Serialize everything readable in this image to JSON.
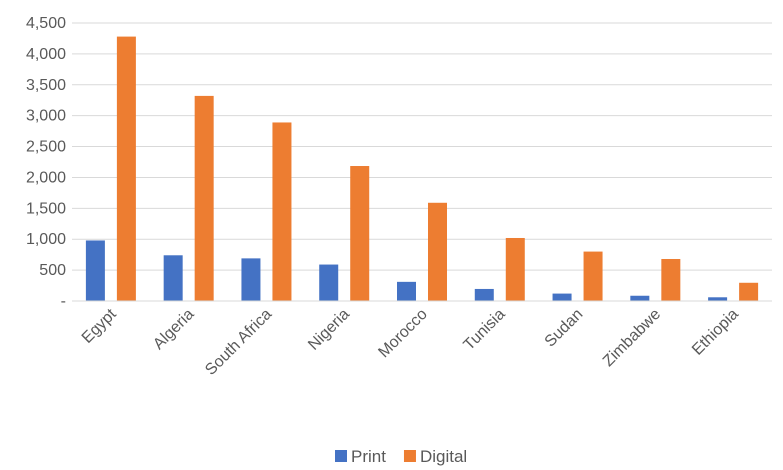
{
  "chart_data": {
    "type": "bar",
    "title": "",
    "xlabel": "",
    "ylabel": "",
    "categories": [
      "Egypt",
      "Algeria",
      "South Africa",
      "Nigeria",
      "Morocco",
      "Tunisia",
      "Sudan",
      "Zimbabwe",
      "Ethiopia"
    ],
    "series": [
      {
        "name": "Print",
        "color": "#4472C4",
        "values": [
          980,
          740,
          690,
          590,
          310,
          195,
          120,
          85,
          60
        ]
      },
      {
        "name": "Digital",
        "color": "#ED7D31",
        "values": [
          4280,
          3320,
          2890,
          2185,
          1590,
          1020,
          800,
          680,
          295
        ]
      }
    ],
    "ylim": [
      0,
      4500
    ],
    "yticks": [
      0,
      500,
      1000,
      1500,
      2000,
      2500,
      3000,
      3500,
      4000,
      4500
    ],
    "ytick_labels": [
      "-",
      "500",
      "1,000",
      "1,500",
      "2,000",
      "2,500",
      "3,000",
      "3,500",
      "4,000",
      "4,500"
    ],
    "grid": true,
    "legend_position": "bottom"
  }
}
